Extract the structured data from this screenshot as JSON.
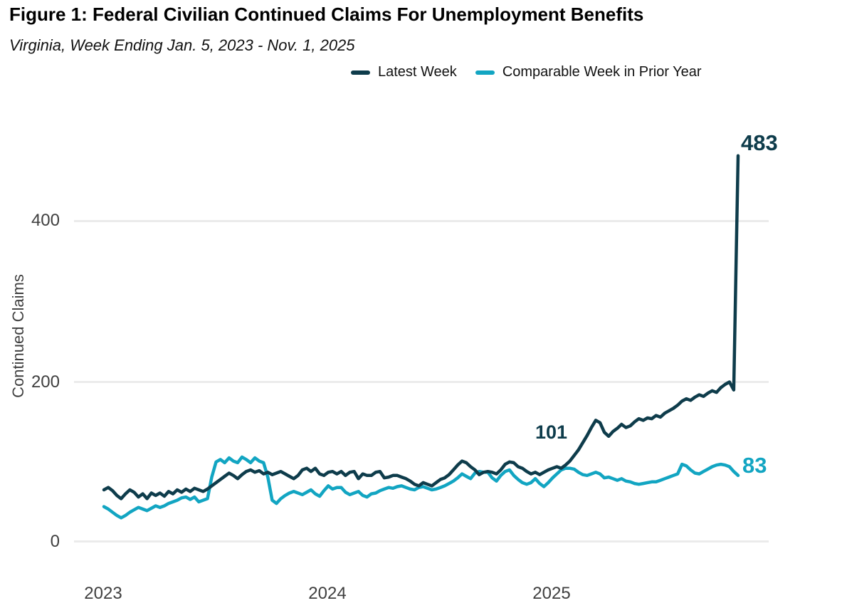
{
  "chart_data": {
    "type": "line",
    "title": "Figure 1: Federal Civilian Continued Claims For Unemployment Benefits",
    "subtitle": "Virginia, Week Ending Jan. 5, 2023 - Nov. 1, 2025",
    "ylabel": "Continued Claims",
    "xlabel": "",
    "x_frequency": "weekly",
    "x_start": "Week Ending Jan. 5, 2023",
    "x_end": "Week Ending Nov. 1, 2025",
    "x_tick_labels": [
      "2023",
      "2024",
      "2025"
    ],
    "y_tick_labels": [
      "400",
      "200",
      "0"
    ],
    "y_grid_values": [
      0,
      200,
      400
    ],
    "ylim": [
      0,
      500
    ],
    "grid": true,
    "legend_position": "top",
    "series": [
      {
        "name": "Latest Week",
        "color": "#0e3c4b",
        "values": [
          65,
          68,
          64,
          58,
          54,
          60,
          65,
          62,
          56,
          60,
          54,
          61,
          58,
          61,
          57,
          63,
          60,
          65,
          62,
          66,
          63,
          67,
          65,
          63,
          66,
          70,
          74,
          78,
          82,
          86,
          83,
          79,
          84,
          88,
          90,
          87,
          89,
          85,
          87,
          84,
          86,
          88,
          85,
          82,
          79,
          83,
          90,
          92,
          88,
          92,
          85,
          83,
          87,
          88,
          85,
          88,
          83,
          87,
          88,
          79,
          85,
          83,
          83,
          87,
          88,
          80,
          81,
          83,
          83,
          81,
          79,
          76,
          72,
          70,
          74,
          72,
          70,
          74,
          78,
          80,
          84,
          90,
          96,
          101,
          99,
          94,
          90,
          84,
          87,
          88,
          87,
          85,
          90,
          97,
          100,
          99,
          94,
          92,
          88,
          85,
          87,
          84,
          87,
          90,
          92,
          94,
          92,
          96,
          101,
          108,
          115,
          124,
          133,
          143,
          152,
          149,
          137,
          132,
          138,
          142,
          147,
          143,
          145,
          150,
          154,
          152,
          155,
          154,
          158,
          156,
          161,
          164,
          167,
          171,
          176,
          179,
          177,
          181,
          184,
          182,
          186,
          189,
          187,
          193,
          197,
          200,
          190,
          483
        ]
      },
      {
        "name": "Comparable Week in Prior Year",
        "color": "#12a5c2",
        "values": [
          44,
          41,
          37,
          33,
          30,
          33,
          37,
          40,
          43,
          41,
          39,
          42,
          45,
          43,
          45,
          48,
          50,
          52,
          55,
          56,
          53,
          56,
          50,
          52,
          54,
          81,
          100,
          103,
          99,
          105,
          101,
          99,
          106,
          103,
          99,
          105,
          101,
          99,
          81,
          52,
          48,
          54,
          58,
          61,
          63,
          61,
          59,
          62,
          65,
          60,
          57,
          64,
          70,
          66,
          68,
          68,
          62,
          59,
          61,
          63,
          58,
          56,
          60,
          61,
          64,
          66,
          68,
          67,
          69,
          70,
          68,
          66,
          65,
          68,
          69,
          67,
          65,
          66,
          68,
          70,
          73,
          76,
          80,
          85,
          82,
          79,
          86,
          88,
          87,
          87,
          80,
          76,
          83,
          88,
          90,
          83,
          78,
          74,
          72,
          74,
          79,
          73,
          69,
          74,
          80,
          85,
          90,
          92,
          92,
          91,
          87,
          84,
          83,
          85,
          87,
          85,
          80,
          81,
          79,
          77,
          79,
          76,
          75,
          73,
          72,
          73,
          74,
          75,
          75,
          77,
          79,
          81,
          83,
          85,
          97,
          95,
          90,
          86,
          85,
          88,
          91,
          94,
          96,
          97,
          96,
          94,
          88,
          83
        ]
      }
    ],
    "annotations": [
      {
        "text": "101",
        "series": "Latest Week",
        "week_index": 108,
        "value": 101,
        "color": "#0e3c4b"
      },
      {
        "text": "483",
        "series": "Latest Week",
        "week_index": 147,
        "value": 483,
        "color": "#0e3c4b"
      },
      {
        "text": "83",
        "series": "Comparable Week in Prior Year",
        "week_index": 147,
        "value": 83,
        "color": "#12a5c2"
      }
    ]
  }
}
